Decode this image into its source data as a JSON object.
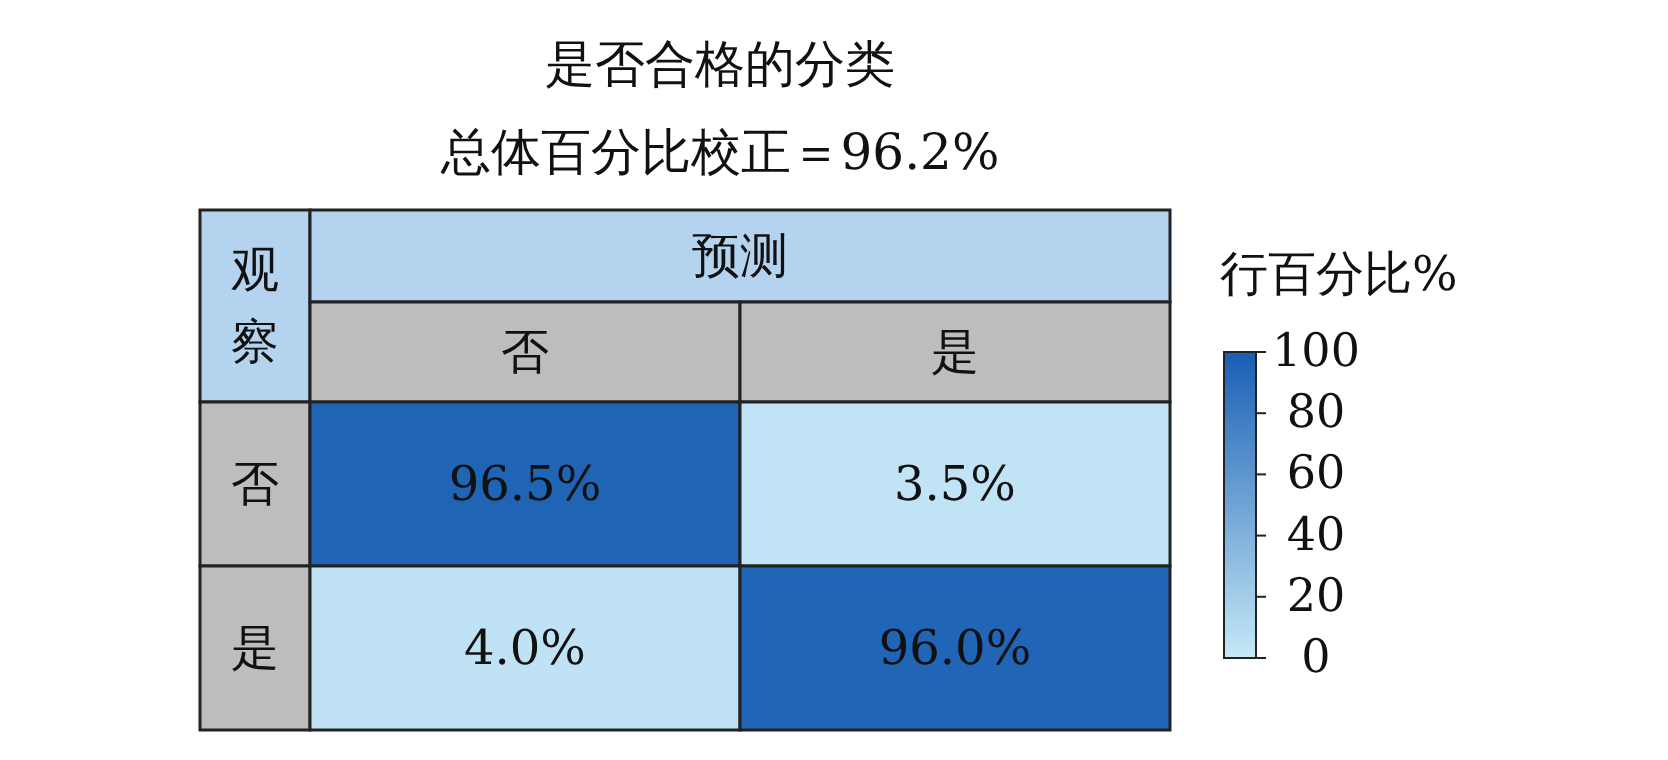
{
  "chart_data": {
    "type": "heatmap",
    "title": "是否合格的分类",
    "subtitle": "总体百分比校正＝96.2%",
    "xlabel": "预测",
    "ylabel": "观察",
    "categories": [
      "否",
      "是"
    ],
    "y_categories": [
      "否",
      "是"
    ],
    "cells": [
      [
        96.5,
        3.5
      ],
      [
        4.0,
        96.0
      ]
    ],
    "cell_labels": [
      [
        "96.5%",
        "3.5%"
      ],
      [
        "4.0%",
        "96.0%"
      ]
    ],
    "clabel": "行百分比%",
    "clim": [
      0,
      100
    ],
    "cticks": [
      0,
      20,
      40,
      60,
      80,
      100
    ]
  }
}
